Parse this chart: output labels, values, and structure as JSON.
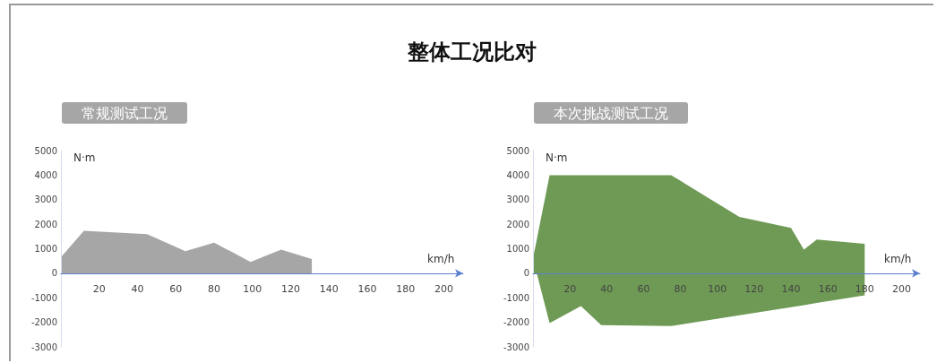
{
  "chart_data": [
    {
      "type": "area",
      "title": "整体工况比对",
      "subtitle": "常规测试工况",
      "xlabel": "km/h",
      "ylabel": "N·m",
      "x": [
        0,
        12,
        45,
        65,
        80,
        99,
        115,
        131
      ],
      "series": [
        {
          "color": "#a6a6a6",
          "values": [
            650,
            1730,
            1590,
            900,
            1250,
            460,
            960,
            580
          ]
        }
      ],
      "xlim": [
        0,
        210
      ],
      "xticks": [
        20,
        40,
        60,
        80,
        100,
        120,
        140,
        160,
        180,
        200
      ],
      "ylim": [
        -3000,
        5000
      ],
      "yticks": [
        -3000,
        -2000,
        -1000,
        0,
        1000,
        2000,
        3000,
        4000,
        5000
      ],
      "grid": false
    },
    {
      "type": "area",
      "subtitle": "本次挑战测试工况",
      "xlabel": "km/h",
      "ylabel": "N·m",
      "x": [
        0,
        9,
        26,
        37,
        75,
        112,
        140,
        147,
        154,
        180
      ],
      "series": [
        {
          "color": "#6f9a55",
          "values": [
            600,
            4000,
            4000,
            4000,
            4000,
            2300,
            1850,
            960,
            1370,
            1200
          ]
        },
        {
          "color": "#6f9a55",
          "values": [
            600,
            -2030,
            -1340,
            -2110,
            -2150,
            -1710,
            -1380,
            -1300,
            -1210,
            -900
          ]
        }
      ],
      "xlim": [
        0,
        210
      ],
      "xticks": [
        20,
        40,
        60,
        80,
        100,
        120,
        140,
        160,
        180,
        200
      ],
      "ylim": [
        -3000,
        5000
      ],
      "yticks": [
        -3000,
        -2000,
        -1000,
        0,
        1000,
        2000,
        3000,
        4000,
        5000
      ],
      "grid": false
    }
  ]
}
